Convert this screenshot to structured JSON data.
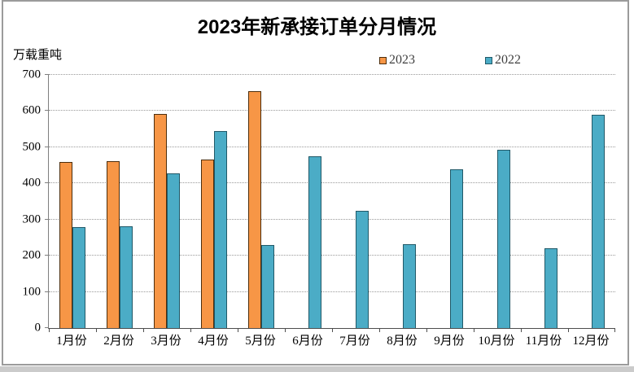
{
  "chart_data": {
    "type": "bar",
    "title": "2023年新承接订单分月情况",
    "ylabel": "万载重吨",
    "categories": [
      "1月份",
      "2月份",
      "3月份",
      "4月份",
      "5月份",
      "6月份",
      "7月份",
      "8月份",
      "9月份",
      "10月份",
      "11月份",
      "12月份"
    ],
    "series": [
      {
        "name": "2023",
        "color": "#F79646",
        "border_color": "#4d2e0d",
        "values": [
          460,
          462,
          591,
          466,
          655,
          null,
          null,
          null,
          null,
          null,
          null,
          null
        ]
      },
      {
        "name": "2022",
        "color": "#4BACC6",
        "border_color": "#215968",
        "values": [
          280,
          282,
          427,
          545,
          229,
          476,
          325,
          232,
          440,
          492,
          220,
          590
        ]
      }
    ],
    "ylim": [
      0,
      700
    ],
    "ytick_step": 100,
    "yticks": [
      "0",
      "100",
      "200",
      "300",
      "400",
      "500",
      "600",
      "700"
    ],
    "grid": "horizontal-dotted",
    "legend_position": "top-center"
  }
}
